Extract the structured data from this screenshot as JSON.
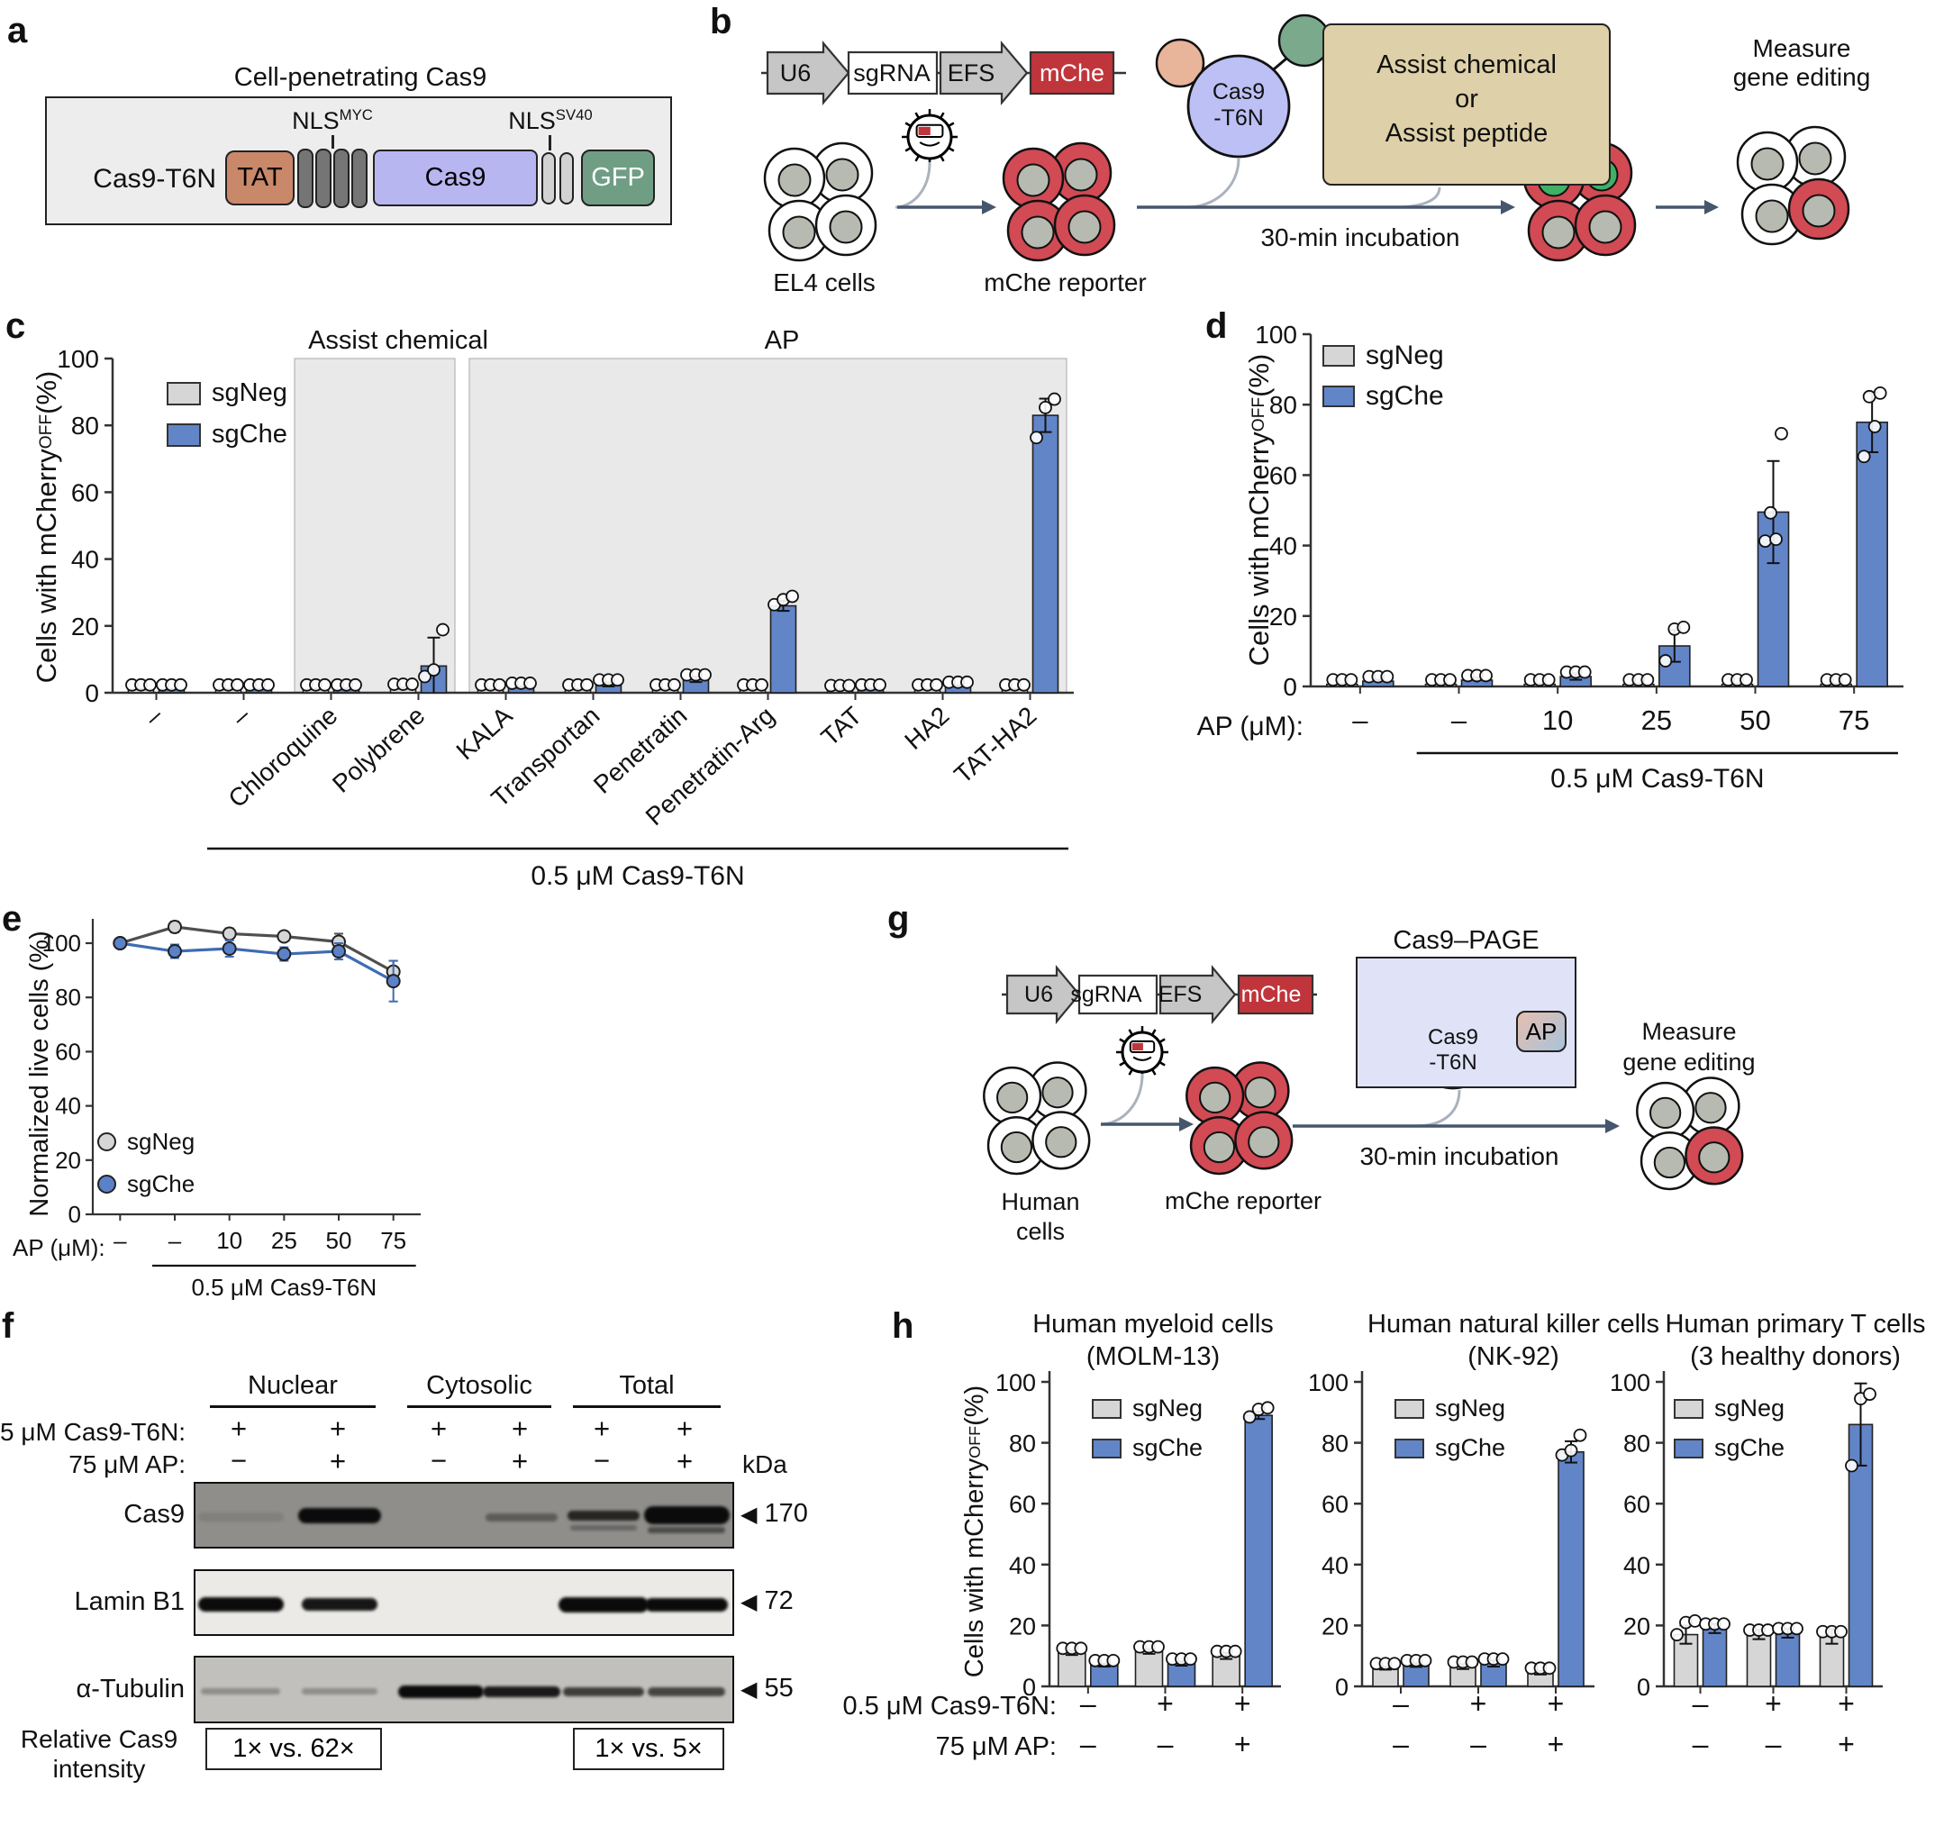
{
  "panels": {
    "a": {
      "label": "a",
      "title": "Cell-penetrating Cas9",
      "name": "Cas9-T6N",
      "domains": {
        "tat": "TAT",
        "cas9": "Cas9",
        "gfp": "GFP"
      },
      "nls1": {
        "base": "NLS",
        "sup": "MYC"
      },
      "nls2": {
        "base": "NLS",
        "sup": "SV40"
      },
      "colors": {
        "tat": "#c9886a",
        "cas9": "#b8b6f1",
        "gfp": "#6f9e85",
        "nls_myc": "#757575",
        "nls_sv40": "#d2d2d2",
        "background": "#ededed"
      }
    },
    "b": {
      "label": "b",
      "construct": {
        "u6": "U6",
        "sgrna": "sgRNA",
        "efs": "EFS",
        "mche": "mChe"
      },
      "el4": "EL4 cells",
      "reporter": "mChe reporter",
      "cas9_line1": "Cas9",
      "cas9_line2": "-T6N",
      "assist_box": [
        "Assist chemical",
        "or",
        "Assist peptide"
      ],
      "incubation": "30-min incubation",
      "measure": [
        "Measure",
        "gene editing"
      ],
      "colors": {
        "assist_box": "#ded0a8",
        "mche": "#c0353b"
      }
    },
    "g": {
      "label": "g",
      "title": "Cas9–PAGE",
      "construct": {
        "u6": "U6",
        "sgrna": "sgRNA",
        "efs": "EFS",
        "mche": "mChe"
      },
      "human": [
        "Human",
        "cells"
      ],
      "reporter": "mChe reporter",
      "cas9_line1": "Cas9",
      "cas9_line2": "-T6N",
      "ap": "AP",
      "incubation": "30-min incubation",
      "measure": [
        "Measure",
        "gene editing"
      ],
      "colors": {
        "page_box": "#e0e3f7"
      }
    },
    "f": {
      "label": "f",
      "groups": [
        "Nuclear",
        "Cytosolic",
        "Total"
      ],
      "row1": {
        "label": "5 μM Cas9-T6N:",
        "values": [
          "+",
          "+",
          "+",
          "+",
          "+",
          "+"
        ]
      },
      "row2": {
        "label": "75 μM AP:",
        "values": [
          "−",
          "+",
          "−",
          "+",
          "−",
          "+"
        ]
      },
      "kda": "kDa",
      "blots": [
        {
          "name": "Cas9",
          "marker": "170",
          "bg": "#8f8e8b",
          "bands": [
            {
              "l": 0,
              "o": 0.1,
              "w": 95,
              "h": 10
            },
            {
              "l": 1,
              "o": 1,
              "w": 92,
              "h": 17,
              "dy": -2
            },
            {
              "l": 3,
              "o": 0.38,
              "w": 80,
              "h": 9
            },
            {
              "l": 4,
              "o": 0.8,
              "w": 80,
              "h": 11,
              "dy": -2
            },
            {
              "l": 4,
              "o": 0.3,
              "w": 74,
              "h": 6,
              "dy": 12
            },
            {
              "l": 5,
              "o": 1,
              "w": 95,
              "h": 20,
              "dy": -2
            },
            {
              "l": 5,
              "o": 0.5,
              "w": 86,
              "h": 7,
              "dy": 14
            }
          ]
        },
        {
          "name": "Lamin B1",
          "marker": "72",
          "bg": "#eceae6",
          "bands": [
            {
              "l": 0,
              "o": 1,
              "w": 95,
              "h": 16
            },
            {
              "l": 1,
              "o": 0.95,
              "w": 84,
              "h": 14
            },
            {
              "l": 4,
              "o": 1,
              "w": 100,
              "h": 17
            },
            {
              "l": 5,
              "o": 1,
              "w": 92,
              "h": 15
            }
          ]
        },
        {
          "name": "α-Tubulin",
          "marker": "55",
          "bg": "#c2c0bc",
          "bands": [
            {
              "l": 0,
              "o": 0.28,
              "w": 88,
              "h": 7
            },
            {
              "l": 1,
              "o": 0.28,
              "w": 84,
              "h": 7
            },
            {
              "l": 2,
              "o": 1,
              "w": 95,
              "h": 14
            },
            {
              "l": 3,
              "o": 0.92,
              "w": 86,
              "h": 12
            },
            {
              "l": 4,
              "o": 0.72,
              "w": 90,
              "h": 10
            },
            {
              "l": 5,
              "o": 0.68,
              "w": 86,
              "h": 10
            }
          ]
        }
      ],
      "intensity_label": [
        "Relative Cas9",
        "intensity"
      ],
      "intensity_boxes": [
        "1×  vs.  62×",
        "1×  vs.  5×"
      ]
    },
    "c": {
      "label": "c"
    },
    "d": {
      "label": "d"
    },
    "e": {
      "label": "e"
    },
    "h": {
      "label": "h"
    }
  },
  "chart_data": [
    {
      "panel": "c",
      "type": "bar",
      "ylabel": "Cells with mCherry",
      "ylabel_sup": "OFF",
      "ylabel_tail": " (%)",
      "ylim": [
        0,
        100
      ],
      "yticks": [
        0,
        20,
        40,
        60,
        80,
        100
      ],
      "categories": [
        "–",
        "–",
        "Chloroquine",
        "Polybrene",
        "KALA",
        "Transportan",
        "Penetratin",
        "Penetratin-Arg",
        "TAT",
        "HA2",
        "TAT-HA2"
      ],
      "regions": [
        {
          "label": "Assist chemical",
          "from": 2,
          "to": 3
        },
        {
          "label": "AP",
          "from": 4,
          "to": 10
        }
      ],
      "series": [
        {
          "name": "sgNeg",
          "color": "#d6d6d6",
          "values": [
            1,
            1,
            1,
            1.2,
            1,
            1,
            1,
            1,
            0.8,
            1,
            1
          ],
          "errors": [
            0.2,
            0.2,
            0.2,
            0.3,
            0.2,
            0.2,
            0.2,
            0.2,
            0.2,
            0.2,
            0.2
          ]
        },
        {
          "name": "sgChe",
          "color": "#6285c8",
          "values": [
            1,
            1,
            1,
            8,
            1.5,
            2.5,
            4,
            26,
            1,
            1.8,
            83
          ],
          "errors": [
            0.2,
            0.2,
            0.3,
            8.5,
            0.4,
            0.6,
            0.8,
            1.5,
            0.3,
            0.5,
            5
          ],
          "points": {
            "3": [
              3.5,
              5.5,
              17.5
            ],
            "7": [
              25,
              26.5,
              27.5
            ],
            "10": [
              75,
              84,
              86.5
            ]
          }
        }
      ],
      "xunderline": {
        "label": "0.5 μM Cas9-T6N",
        "from": 1
      }
    },
    {
      "panel": "d",
      "type": "bar",
      "ylabel": "Cells with mCherry",
      "ylabel_sup": "OFF",
      "ylabel_tail": " (%)",
      "ylim": [
        0,
        100
      ],
      "yticks": [
        0,
        20,
        40,
        60,
        80,
        100
      ],
      "row_label": "AP (μM):",
      "categories": [
        "–",
        "–",
        "10",
        "25",
        "50",
        "75"
      ],
      "series": [
        {
          "name": "sgNeg",
          "color": "#d6d6d6",
          "values": [
            0.6,
            0.6,
            0.6,
            0.6,
            0.6,
            0.6
          ],
          "errors": [
            0.2,
            0.2,
            0.2,
            0.2,
            0.2,
            0.2
          ]
        },
        {
          "name": "sgChe",
          "color": "#6285c8",
          "values": [
            1.5,
            1.8,
            2.8,
            11.5,
            49.5,
            75
          ],
          "errors": [
            0.5,
            0.7,
            0.9,
            4.5,
            14.5,
            8.5
          ],
          "points": {
            "3": [
              6,
              15,
              15.5
            ],
            "4": [
              40,
              40.5,
              48,
              70.5
            ],
            "5": [
              64,
              72.5,
              81,
              82
            ]
          }
        }
      ],
      "xunderline": {
        "label": "0.5 μM Cas9-T6N",
        "from": 1
      }
    },
    {
      "panel": "e",
      "type": "line",
      "ylabel": "Normalized live cells (%)",
      "ylim": [
        0,
        112
      ],
      "yticks": [
        0,
        20,
        40,
        60,
        80,
        100
      ],
      "row_label": "AP (μM):",
      "categories": [
        "–",
        "–",
        "10",
        "25",
        "50",
        "75"
      ],
      "series": [
        {
          "name": "sgNeg",
          "color": "#4f4f4f",
          "marker": "#d6d6d6",
          "values": [
            100,
            106,
            103.5,
            102.5,
            100.5,
            89.5
          ],
          "errors": [
            1,
            2,
            2,
            1.5,
            3,
            4
          ]
        },
        {
          "name": "sgChe",
          "color": "#3e6cb5",
          "marker": "#5b82c8",
          "values": [
            100,
            97,
            98,
            96,
            97,
            86
          ],
          "errors": [
            0.5,
            2.5,
            3,
            2.5,
            3,
            7.5
          ]
        }
      ],
      "xunderline": {
        "label": "0.5 μM Cas9-T6N",
        "from": 1
      }
    },
    {
      "panel": "h1",
      "type": "bar",
      "title1": "Human myeloid cells",
      "title2": "(MOLM-13)",
      "ylabel": "Cells with mCherry",
      "ylabel_sup": "OFF",
      "ylabel_tail": " (%)",
      "ylim": [
        0,
        100
      ],
      "yticks": [
        0,
        20,
        40,
        60,
        80,
        100
      ],
      "categories": [
        "",
        "",
        ""
      ],
      "rows": [
        {
          "label": "0.5 μM Cas9-T6N:",
          "values": [
            "–",
            "+",
            "+"
          ]
        },
        {
          "label": "75 μM AP:",
          "values": [
            "–",
            "–",
            "+"
          ]
        }
      ],
      "series": [
        {
          "name": "sgNeg",
          "color": "#d6d6d6",
          "values": [
            11,
            11.5,
            10
          ],
          "errors": [
            0.7,
            0.8,
            1
          ]
        },
        {
          "name": "sgChe",
          "color": "#6285c8",
          "values": [
            7,
            7.5,
            89
          ],
          "errors": [
            0.5,
            0.7,
            1.2
          ],
          "points": {
            "2": [
              87,
              89.5,
              90
            ]
          }
        }
      ]
    },
    {
      "panel": "h2",
      "type": "bar",
      "title1": "Human natural killer cells",
      "title2": "(NK-92)",
      "ylim": [
        0,
        100
      ],
      "yticks": [
        0,
        20,
        40,
        60,
        80,
        100
      ],
      "categories": [
        "",
        "",
        ""
      ],
      "rows": [
        {
          "values": [
            "–",
            "+",
            "+"
          ]
        },
        {
          "values": [
            "–",
            "–",
            "+"
          ]
        }
      ],
      "series": [
        {
          "name": "sgNeg",
          "color": "#d6d6d6",
          "values": [
            6,
            6.5,
            4.5
          ],
          "errors": [
            0.5,
            0.8,
            0.6
          ]
        },
        {
          "name": "sgChe",
          "color": "#6285c8",
          "values": [
            7,
            7.5,
            77
          ],
          "errors": [
            0.6,
            1,
            3.5
          ],
          "points": {
            "2": [
              74.5,
              76,
              81
            ]
          }
        }
      ]
    },
    {
      "panel": "h3",
      "type": "bar",
      "title1": "Human primary T cells",
      "title2": "(3 healthy donors)",
      "ylim": [
        0,
        100
      ],
      "yticks": [
        0,
        20,
        40,
        60,
        80,
        100
      ],
      "categories": [
        "",
        "",
        ""
      ],
      "rows": [
        {
          "values": [
            "–",
            "+",
            "+"
          ]
        },
        {
          "values": [
            "–",
            "–",
            "+"
          ]
        }
      ],
      "series": [
        {
          "name": "sgNeg",
          "color": "#d6d6d6",
          "values": [
            17,
            17,
            16.5
          ],
          "errors": [
            3,
            1.5,
            2.5
          ],
          "points": {
            "0": [
              15.5,
              19.5,
              20
            ]
          }
        },
        {
          "name": "sgChe",
          "color": "#6285c8",
          "values": [
            19,
            17.5,
            86
          ],
          "errors": [
            1.5,
            1.5,
            13.5
          ],
          "points": {
            "2": [
              71,
              93,
              94.5
            ]
          }
        }
      ]
    }
  ]
}
